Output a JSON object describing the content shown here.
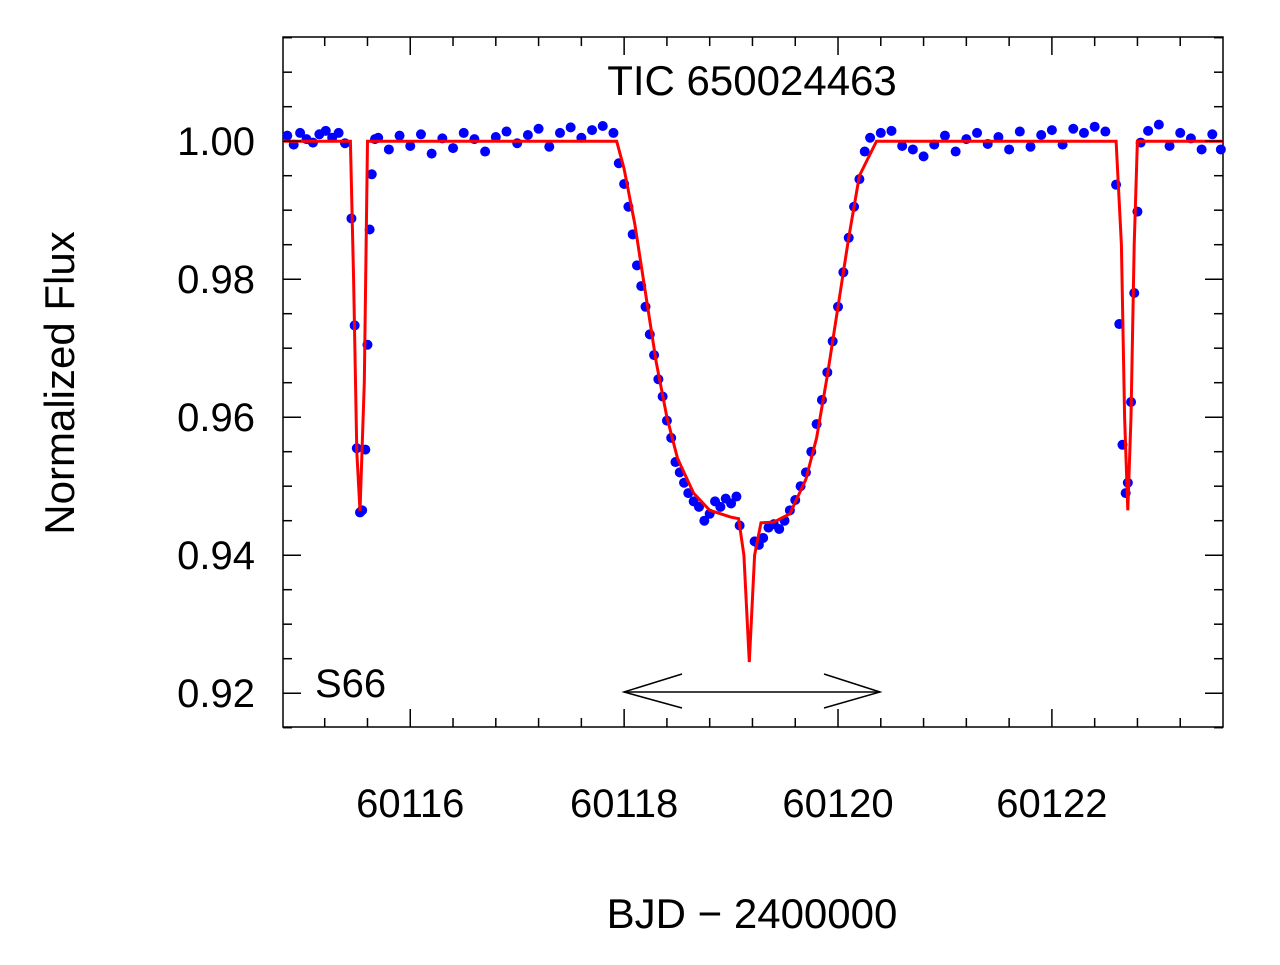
{
  "chart_data": {
    "type": "scatter",
    "title": "TIC 650024463",
    "x_label": "BJD − 2400000",
    "y_label": "Normalized Flux",
    "annotation": "S66",
    "xlim": [
      60114.81,
      60123.6
    ],
    "ylim": [
      0.9151,
      1.0151
    ],
    "xticks": [
      60116,
      60118,
      60120,
      60122
    ],
    "yticks": [
      {
        "value": 0.92,
        "label": "0.92"
      },
      {
        "value": 0.94,
        "label": "0.94"
      },
      {
        "value": 0.96,
        "label": "0.96"
      },
      {
        "value": 0.98,
        "label": "0.98"
      },
      {
        "value": 1.0,
        "label": "1.00"
      }
    ],
    "xticks_minor": [
      60115.2,
      60115.6,
      60116.4,
      60116.8,
      60117.2,
      60117.6,
      60118.4,
      60118.8,
      60119.2,
      60119.6,
      60120.4,
      60120.8,
      60121.2,
      60121.6,
      60122.4,
      60122.8,
      60123.2
    ],
    "yticks_minor": [
      0.915,
      0.925,
      0.93,
      0.935,
      0.945,
      0.95,
      0.955,
      0.965,
      0.97,
      0.975,
      0.985,
      0.99,
      0.995,
      1.005,
      1.01,
      1.015
    ],
    "series": [
      {
        "name": "data",
        "color": "#0000ff",
        "x": [
          60114.85,
          60114.91,
          60114.97,
          60115.03,
          60115.09,
          60115.15,
          60115.21,
          60115.27,
          60115.33,
          60115.39,
          60115.45,
          60115.48,
          60115.5,
          60115.53,
          60115.55,
          60115.58,
          60115.6,
          60115.62,
          60115.64,
          60115.67,
          60115.7,
          60115.8,
          60115.9,
          60116.0,
          60116.1,
          60116.2,
          60116.3,
          60116.4,
          60116.5,
          60116.6,
          60116.7,
          60116.8,
          60116.9,
          60117.0,
          60117.1,
          60117.2,
          60117.3,
          60117.4,
          60117.5,
          60117.6,
          60117.7,
          60117.8,
          60117.9,
          60117.95,
          60118.0,
          60118.04,
          60118.08,
          60118.12,
          60118.16,
          60118.2,
          60118.24,
          60118.28,
          60118.32,
          60118.36,
          60118.4,
          60118.44,
          60118.48,
          60118.52,
          60118.56,
          60118.6,
          60118.65,
          60118.7,
          60118.75,
          60118.8,
          60118.85,
          60118.9,
          60118.95,
          60119.0,
          60119.05,
          60119.08,
          60119.22,
          60119.26,
          60119.3,
          60119.35,
          60119.4,
          60119.45,
          60119.5,
          60119.55,
          60119.6,
          60119.65,
          60119.7,
          60119.75,
          60119.8,
          60119.85,
          60119.9,
          60119.95,
          60120.0,
          60120.05,
          60120.1,
          60120.15,
          60120.2,
          60120.25,
          60120.3,
          60120.4,
          60120.5,
          60120.6,
          60120.7,
          60120.8,
          60120.9,
          60121.0,
          60121.1,
          60121.2,
          60121.3,
          60121.4,
          60121.5,
          60121.6,
          60121.7,
          60121.8,
          60121.9,
          60122.0,
          60122.1,
          60122.2,
          60122.3,
          60122.4,
          60122.5,
          60122.6,
          60122.63,
          60122.66,
          60122.69,
          60122.71,
          60122.74,
          60122.77,
          60122.8,
          60122.83,
          60122.9,
          60123.0,
          60123.1,
          60123.2,
          60123.3,
          60123.4,
          60123.5,
          60123.58
        ],
        "values": [
          1.0008,
          0.9995,
          1.0012,
          1.0003,
          0.9998,
          1.001,
          1.0015,
          1.0005,
          1.0012,
          0.9997,
          0.9888,
          0.9733,
          0.9555,
          0.9462,
          0.9465,
          0.9553,
          0.9705,
          0.9872,
          0.9952,
          1.0003,
          1.0005,
          0.9988,
          1.0008,
          0.9993,
          1.001,
          0.9982,
          1.0004,
          0.999,
          1.0012,
          1.0003,
          0.9985,
          1.0006,
          1.0014,
          0.9997,
          1.0009,
          1.0018,
          0.9992,
          1.0012,
          1.002,
          1.0005,
          1.0016,
          1.0022,
          1.0012,
          0.9968,
          0.9938,
          0.9905,
          0.9865,
          0.982,
          0.979,
          0.976,
          0.972,
          0.969,
          0.9655,
          0.963,
          0.9595,
          0.957,
          0.9535,
          0.952,
          0.9505,
          0.949,
          0.9478,
          0.947,
          0.945,
          0.946,
          0.9478,
          0.947,
          0.9482,
          0.9475,
          0.9485,
          0.9443,
          0.942,
          0.9415,
          0.9425,
          0.944,
          0.9445,
          0.9438,
          0.945,
          0.9465,
          0.948,
          0.95,
          0.952,
          0.955,
          0.959,
          0.9625,
          0.9665,
          0.971,
          0.976,
          0.981,
          0.986,
          0.9905,
          0.9945,
          0.9985,
          1.0005,
          1.0012,
          1.0015,
          0.9993,
          0.9988,
          0.9978,
          0.9995,
          1.0008,
          0.9985,
          1.0003,
          1.0012,
          0.9996,
          1.0006,
          0.9988,
          1.0014,
          0.9992,
          1.0009,
          1.0016,
          0.9995,
          1.0018,
          1.0012,
          1.0021,
          1.0014,
          0.9937,
          0.9735,
          0.956,
          0.949,
          0.9505,
          0.9622,
          0.978,
          0.9898,
          0.9998,
          1.0015,
          1.0024,
          0.9993,
          1.0012,
          1.0004,
          0.9988,
          1.001,
          0.9988
        ]
      },
      {
        "name": "model",
        "color": "#ff0000",
        "x": [
          60114.81,
          60115.44,
          60115.47,
          60115.5,
          60115.53,
          60115.57,
          60115.6,
          60117.93,
          60118.0,
          60118.1,
          60118.2,
          60118.3,
          60118.4,
          60118.5,
          60118.65,
          60118.8,
          60119.0,
          60119.07,
          60119.12,
          60119.17,
          60119.22,
          60119.28,
          60119.4,
          60119.55,
          60119.7,
          60119.8,
          60119.9,
          60120.0,
          60120.1,
          60120.2,
          60120.36,
          60122.6,
          60122.65,
          60122.68,
          60122.71,
          60122.74,
          60122.77,
          60122.8,
          60123.6
        ],
        "values": [
          1.0,
          1.0,
          0.98,
          0.955,
          0.9464,
          0.965,
          1.0,
          1.0,
          0.996,
          0.988,
          0.978,
          0.968,
          0.96,
          0.954,
          0.949,
          0.9465,
          0.9455,
          0.9453,
          0.94,
          0.9245,
          0.94,
          0.9447,
          0.9448,
          0.946,
          0.951,
          0.957,
          0.966,
          0.976,
          0.986,
          0.995,
          1.0,
          1.0,
          0.985,
          0.96,
          0.9465,
          0.96,
          0.985,
          1.0,
          1.0
        ]
      }
    ]
  }
}
